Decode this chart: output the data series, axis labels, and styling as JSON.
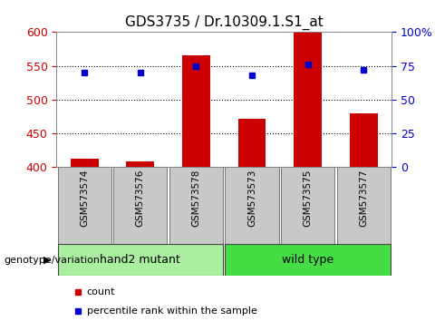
{
  "title": "GDS3735 / Dr.10309.1.S1_at",
  "samples": [
    "GSM573574",
    "GSM573576",
    "GSM573578",
    "GSM573573",
    "GSM573575",
    "GSM573577"
  ],
  "counts": [
    412,
    408,
    565,
    472,
    600,
    480
  ],
  "percentiles": [
    70,
    70,
    75,
    68,
    76,
    72
  ],
  "ylim_left": [
    400,
    600
  ],
  "ylim_right": [
    0,
    100
  ],
  "yticks_left": [
    400,
    450,
    500,
    550,
    600
  ],
  "yticks_right": [
    0,
    25,
    50,
    75,
    100
  ],
  "bar_color": "#cc0000",
  "dot_color": "#0000cc",
  "bar_width": 0.5,
  "groups": [
    {
      "label": "hand2 mutant",
      "indices": [
        0,
        1,
        2
      ],
      "color": "#aaeea0"
    },
    {
      "label": "wild type",
      "indices": [
        3,
        4,
        5
      ],
      "color": "#44dd44"
    }
  ],
  "group_label": "genotype/variation",
  "legend_count": "count",
  "legend_percentile": "percentile rank within the sample",
  "background_color": "#ffffff",
  "grid_color": "#000000",
  "tick_color_left": "#cc0000",
  "tick_color_right": "#0000cc",
  "sample_box_color": "#c8c8c8",
  "title_fontsize": 11,
  "tick_fontsize": 9,
  "sample_fontsize": 7.5,
  "group_fontsize": 9,
  "legend_fontsize": 8
}
